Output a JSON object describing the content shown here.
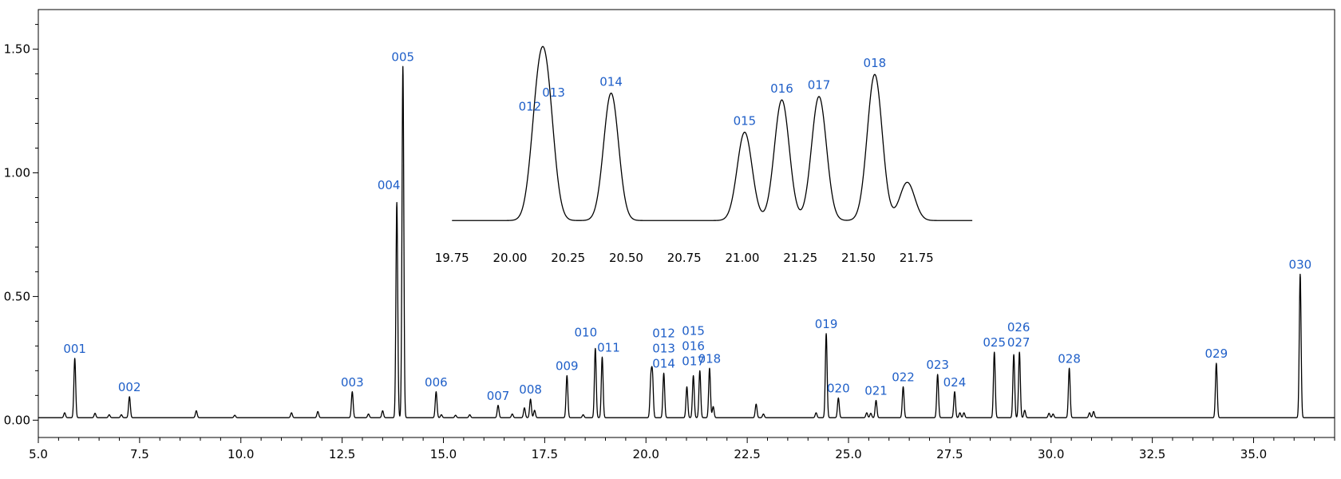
{
  "chart_data": [
    {
      "type": "line",
      "role": "main",
      "title": "",
      "xlabel": "",
      "ylabel": "",
      "xlim": [
        5.0,
        37.0
      ],
      "ylim": [
        -0.07,
        1.66
      ],
      "x_ticks": [
        "5.0",
        "7.5",
        "10.0",
        "12.5",
        "15.0",
        "17.5",
        "20.0",
        "22.5",
        "25.0",
        "27.5",
        "30.0",
        "32.5",
        "35.0"
      ],
      "y_ticks": [
        "0.00",
        "0.50",
        "1.00",
        "1.50"
      ],
      "grid": false,
      "baseline": 0.01,
      "peaks": [
        {
          "x": 5.9,
          "y": 0.24,
          "label": "001"
        },
        {
          "x": 7.25,
          "y": 0.085,
          "label": "002"
        },
        {
          "x": 12.75,
          "y": 0.105,
          "label": "003"
        },
        {
          "x": 13.85,
          "y": 0.87,
          "label": "004"
        },
        {
          "x": 14.0,
          "y": 1.42,
          "label": "005"
        },
        {
          "x": 14.82,
          "y": 0.105,
          "label": "006"
        },
        {
          "x": 16.35,
          "y": 0.05,
          "label": "007"
        },
        {
          "x": 17.15,
          "y": 0.075,
          "label": "008"
        },
        {
          "x": 18.05,
          "y": 0.17,
          "label": "009"
        },
        {
          "x": 18.75,
          "y": 0.28,
          "label": "010"
        },
        {
          "x": 18.92,
          "y": 0.245,
          "label": "011"
        },
        {
          "x": 20.12,
          "y": 0.145,
          "label": "012"
        },
        {
          "x": 20.16,
          "y": 0.165,
          "label": "013"
        },
        {
          "x": 20.44,
          "y": 0.18,
          "label": "014"
        },
        {
          "x": 21.01,
          "y": 0.125,
          "label": "015"
        },
        {
          "x": 21.17,
          "y": 0.17,
          "label": "016"
        },
        {
          "x": 21.33,
          "y": 0.19,
          "label": "017"
        },
        {
          "x": 21.57,
          "y": 0.2,
          "label": "018"
        },
        {
          "x": 24.45,
          "y": 0.34,
          "label": "019"
        },
        {
          "x": 24.75,
          "y": 0.08,
          "label": "020"
        },
        {
          "x": 25.68,
          "y": 0.07,
          "label": "021"
        },
        {
          "x": 26.35,
          "y": 0.125,
          "label": "022"
        },
        {
          "x": 27.2,
          "y": 0.175,
          "label": "023"
        },
        {
          "x": 27.62,
          "y": 0.105,
          "label": "024"
        },
        {
          "x": 28.6,
          "y": 0.265,
          "label": "025"
        },
        {
          "x": 29.08,
          "y": 0.255,
          "label": "026"
        },
        {
          "x": 29.22,
          "y": 0.265,
          "label": "027"
        },
        {
          "x": 30.45,
          "y": 0.2,
          "label": "028"
        },
        {
          "x": 34.08,
          "y": 0.22,
          "label": "029"
        },
        {
          "x": 36.15,
          "y": 0.58,
          "label": "030"
        }
      ],
      "minor_peaks": [
        {
          "x": 5.65,
          "y": 0.02
        },
        {
          "x": 6.4,
          "y": 0.018
        },
        {
          "x": 6.75,
          "y": 0.012
        },
        {
          "x": 7.05,
          "y": 0.012
        },
        {
          "x": 8.9,
          "y": 0.028
        },
        {
          "x": 9.85,
          "y": 0.01
        },
        {
          "x": 11.25,
          "y": 0.02
        },
        {
          "x": 11.9,
          "y": 0.025
        },
        {
          "x": 13.15,
          "y": 0.015
        },
        {
          "x": 13.5,
          "y": 0.028
        },
        {
          "x": 14.95,
          "y": 0.012
        },
        {
          "x": 15.3,
          "y": 0.01
        },
        {
          "x": 15.65,
          "y": 0.012
        },
        {
          "x": 16.7,
          "y": 0.015
        },
        {
          "x": 17.0,
          "y": 0.04
        },
        {
          "x": 17.25,
          "y": 0.03
        },
        {
          "x": 18.45,
          "y": 0.012
        },
        {
          "x": 21.66,
          "y": 0.045
        },
        {
          "x": 22.72,
          "y": 0.055
        },
        {
          "x": 22.9,
          "y": 0.015
        },
        {
          "x": 24.2,
          "y": 0.02
        },
        {
          "x": 25.45,
          "y": 0.02
        },
        {
          "x": 25.55,
          "y": 0.018
        },
        {
          "x": 27.75,
          "y": 0.02
        },
        {
          "x": 27.85,
          "y": 0.02
        },
        {
          "x": 29.35,
          "y": 0.03
        },
        {
          "x": 29.95,
          "y": 0.018
        },
        {
          "x": 30.05,
          "y": 0.015
        },
        {
          "x": 30.95,
          "y": 0.02
        },
        {
          "x": 31.05,
          "y": 0.025
        }
      ]
    },
    {
      "type": "line",
      "role": "inset",
      "title": "",
      "xlabel": "",
      "ylabel": "",
      "xlim": [
        19.75,
        22.0
      ],
      "ylim": [
        0.0,
        1.0
      ],
      "x_ticks": [
        "19.75",
        "20.00",
        "20.25",
        "20.50",
        "20.75",
        "21.00",
        "21.25",
        "21.50",
        "21.75"
      ],
      "grid": false,
      "baseline": 0.013,
      "peaks": [
        {
          "x": 20.12,
          "y": 0.605,
          "label": "012"
        },
        {
          "x": 20.16,
          "y": 0.64,
          "label": "013"
        },
        {
          "x": 20.435,
          "y": 0.75,
          "label": "014"
        },
        {
          "x": 21.01,
          "y": 0.52,
          "label": "015"
        },
        {
          "x": 21.17,
          "y": 0.71,
          "label": "016"
        },
        {
          "x": 21.33,
          "y": 0.73,
          "label": "017"
        },
        {
          "x": 21.57,
          "y": 0.86,
          "label": "018"
        },
        {
          "x": 21.71,
          "y": 0.225,
          "label": ""
        }
      ]
    }
  ]
}
